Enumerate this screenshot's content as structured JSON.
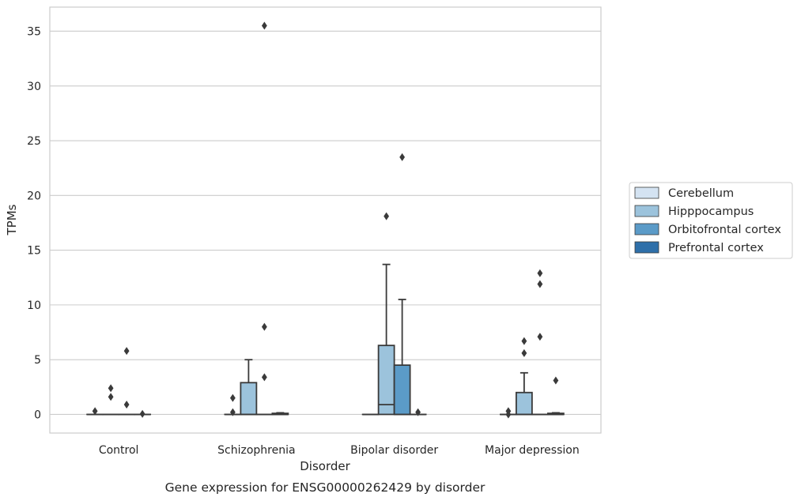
{
  "chart_data": {
    "type": "box",
    "title": "",
    "caption": "Gene expression for ENSG00000262429 by disorder",
    "xlabel": "Disorder",
    "ylabel": "TPMs",
    "ylim": [
      -1.7,
      37.2
    ],
    "yticks": [
      0,
      5,
      10,
      15,
      20,
      25,
      30,
      35
    ],
    "grid": "horizontal",
    "legend_position": "right",
    "categories": [
      "Control",
      "Schizophrenia",
      "Bipolar disorder",
      "Major depression"
    ],
    "series": [
      {
        "name": "Cerebellum",
        "color": "#d4e3f2",
        "boxes": [
          {
            "q1": 0,
            "median": 0,
            "q3": 0,
            "whislo": 0,
            "whishi": 0,
            "fliers": [
              0.3
            ]
          },
          {
            "q1": 0,
            "median": 0,
            "q3": 0,
            "whislo": 0,
            "whishi": 0,
            "fliers": [
              0.2,
              1.5
            ]
          },
          {
            "q1": 0,
            "median": 0,
            "q3": 0,
            "whislo": 0,
            "whishi": 0,
            "fliers": []
          },
          {
            "q1": 0,
            "median": 0,
            "q3": 0,
            "whislo": 0,
            "whishi": 0,
            "fliers": [
              0.0,
              0.3
            ]
          }
        ]
      },
      {
        "name": "Hipppocampus",
        "color": "#9cc3dc",
        "boxes": [
          {
            "q1": 0,
            "median": 0,
            "q3": 0,
            "whislo": 0,
            "whishi": 0,
            "fliers": [
              1.6,
              2.4
            ]
          },
          {
            "q1": 0,
            "median": 0,
            "q3": 2.9,
            "whislo": 0,
            "whishi": 5.0,
            "fliers": []
          },
          {
            "q1": 0,
            "median": 0.9,
            "q3": 6.3,
            "whislo": 0,
            "whishi": 13.7,
            "fliers": [
              18.1
            ]
          },
          {
            "q1": 0,
            "median": 0,
            "q3": 2.0,
            "whislo": 0,
            "whishi": 3.8,
            "fliers": [
              5.6,
              6.7
            ]
          }
        ]
      },
      {
        "name": "Orbitofrontal cortex",
        "color": "#5b9bc8",
        "boxes": [
          {
            "q1": 0,
            "median": 0,
            "q3": 0,
            "whislo": 0,
            "whishi": 0,
            "fliers": [
              0.9,
              5.8
            ]
          },
          {
            "q1": 0,
            "median": 0,
            "q3": 0,
            "whislo": 0,
            "whishi": 0,
            "fliers": [
              3.4,
              8.0,
              35.5
            ]
          },
          {
            "q1": 0,
            "median": 0,
            "q3": 4.5,
            "whislo": 0,
            "whishi": 10.5,
            "fliers": [
              23.5
            ]
          },
          {
            "q1": 0,
            "median": 0,
            "q3": 0,
            "whislo": 0,
            "whishi": 0,
            "fliers": [
              7.1,
              11.9,
              12.9
            ]
          }
        ]
      },
      {
        "name": "Prefrontal cortex",
        "color": "#2e6fa9",
        "boxes": [
          {
            "q1": 0,
            "median": 0,
            "q3": 0,
            "whislo": 0,
            "whishi": 0,
            "fliers": [
              0.05
            ]
          },
          {
            "q1": 0,
            "median": 0,
            "q3": 0.1,
            "whislo": 0,
            "whishi": 0.15,
            "fliers": []
          },
          {
            "q1": 0,
            "median": 0,
            "q3": 0,
            "whislo": 0,
            "whishi": 0,
            "fliers": [
              0.2
            ]
          },
          {
            "q1": 0,
            "median": 0,
            "q3": 0.1,
            "whislo": 0,
            "whishi": 0.15,
            "fliers": [
              3.1
            ]
          }
        ]
      }
    ]
  }
}
